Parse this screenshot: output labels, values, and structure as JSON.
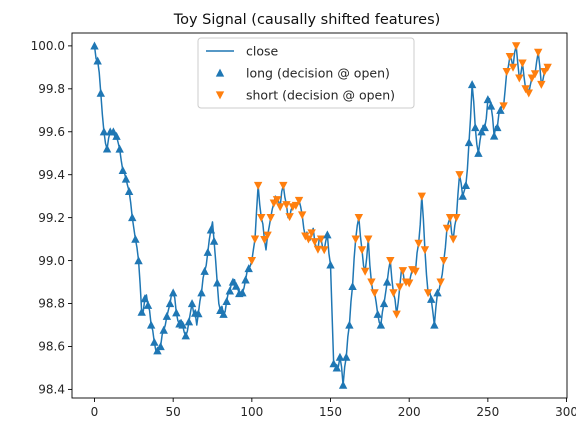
{
  "chart_data": {
    "type": "line",
    "title": "Toy Signal (causally shifted features)",
    "xlabel": "",
    "ylabel": "",
    "xlim": [
      -14.3,
      300.3
    ],
    "ylim": [
      98.36,
      100.06
    ],
    "x_ticks": [
      0,
      50,
      100,
      150,
      200,
      250,
      300
    ],
    "y_ticks": [
      98.4,
      98.6,
      98.8,
      99.0,
      99.2,
      99.4,
      99.6,
      99.8,
      100.0
    ],
    "y_tick_labels": [
      "98.4",
      "98.6",
      "98.8",
      "99.0",
      "99.2",
      "99.4",
      "99.6",
      "99.8",
      "100.0"
    ],
    "grid": false,
    "legend_position": "top-center",
    "series": [
      {
        "name": "close",
        "kind": "line",
        "color": "#1f77b4",
        "keypoints": [
          [
            0,
            100.0
          ],
          [
            2,
            99.93
          ],
          [
            4,
            99.78
          ],
          [
            6,
            99.6
          ],
          [
            8,
            99.52
          ],
          [
            10,
            99.6
          ],
          [
            12,
            99.6
          ],
          [
            15,
            99.55
          ],
          [
            18,
            99.42
          ],
          [
            20,
            99.38
          ],
          [
            23,
            99.27
          ],
          [
            26,
            99.1
          ],
          [
            28,
            99.0
          ],
          [
            30,
            98.76
          ],
          [
            33,
            98.84
          ],
          [
            36,
            98.7
          ],
          [
            38,
            98.62
          ],
          [
            40,
            98.58
          ],
          [
            42,
            98.6
          ],
          [
            45,
            98.7
          ],
          [
            48,
            98.8
          ],
          [
            50,
            98.85
          ],
          [
            53,
            98.72
          ],
          [
            56,
            98.7
          ],
          [
            58,
            98.65
          ],
          [
            62,
            98.8
          ],
          [
            65,
            98.7
          ],
          [
            68,
            98.85
          ],
          [
            70,
            98.95
          ],
          [
            73,
            99.1
          ],
          [
            75,
            99.18
          ],
          [
            77,
            99.0
          ],
          [
            79,
            98.8
          ],
          [
            82,
            98.75
          ],
          [
            85,
            98.85
          ],
          [
            88,
            98.9
          ],
          [
            91,
            98.87
          ],
          [
            94,
            98.85
          ],
          [
            97,
            98.95
          ],
          [
            100,
            99.0
          ],
          [
            102,
            99.1
          ],
          [
            104,
            99.35
          ],
          [
            106,
            99.2
          ],
          [
            109,
            99.05
          ],
          [
            112,
            99.2
          ],
          [
            115,
            99.3
          ],
          [
            118,
            99.25
          ],
          [
            120,
            99.35
          ],
          [
            123,
            99.2
          ],
          [
            126,
            99.25
          ],
          [
            130,
            99.28
          ],
          [
            133,
            99.15
          ],
          [
            136,
            99.1
          ],
          [
            139,
            99.15
          ],
          [
            141,
            99.06
          ],
          [
            144,
            99.1
          ],
          [
            146,
            99.05
          ],
          [
            148,
            99.12
          ],
          [
            150,
            98.98
          ],
          [
            152,
            98.52
          ],
          [
            154,
            98.5
          ],
          [
            156,
            98.55
          ],
          [
            158,
            98.42
          ],
          [
            160,
            98.55
          ],
          [
            162,
            98.7
          ],
          [
            164,
            98.88
          ],
          [
            166,
            99.1
          ],
          [
            168,
            99.2
          ],
          [
            170,
            99.05
          ],
          [
            172,
            98.95
          ],
          [
            174,
            99.1
          ],
          [
            176,
            98.9
          ],
          [
            178,
            98.85
          ],
          [
            180,
            98.75
          ],
          [
            182,
            98.7
          ],
          [
            184,
            98.8
          ],
          [
            186,
            98.9
          ],
          [
            188,
            99.0
          ],
          [
            190,
            98.85
          ],
          [
            192,
            98.75
          ],
          [
            195,
            98.95
          ],
          [
            198,
            98.9
          ],
          [
            201,
            98.93
          ],
          [
            204,
            98.95
          ],
          [
            206,
            99.08
          ],
          [
            208,
            99.3
          ],
          [
            210,
            99.05
          ],
          [
            212,
            98.85
          ],
          [
            214,
            98.82
          ],
          [
            216,
            98.7
          ],
          [
            218,
            98.85
          ],
          [
            220,
            98.9
          ],
          [
            222,
            99.0
          ],
          [
            224,
            99.15
          ],
          [
            226,
            99.2
          ],
          [
            228,
            99.1
          ],
          [
            230,
            99.2
          ],
          [
            232,
            99.4
          ],
          [
            234,
            99.3
          ],
          [
            236,
            99.35
          ],
          [
            238,
            99.55
          ],
          [
            240,
            99.82
          ],
          [
            242,
            99.62
          ],
          [
            244,
            99.5
          ],
          [
            246,
            99.6
          ],
          [
            248,
            99.62
          ],
          [
            250,
            99.75
          ],
          [
            252,
            99.72
          ],
          [
            254,
            99.58
          ],
          [
            256,
            99.62
          ],
          [
            258,
            99.7
          ],
          [
            260,
            99.72
          ],
          [
            262,
            99.88
          ],
          [
            264,
            99.95
          ],
          [
            266,
            99.9
          ],
          [
            268,
            100.0
          ],
          [
            270,
            99.85
          ],
          [
            272,
            99.92
          ],
          [
            274,
            99.8
          ],
          [
            276,
            99.78
          ],
          [
            278,
            99.85
          ],
          [
            280,
            99.87
          ],
          [
            282,
            99.97
          ],
          [
            284,
            99.82
          ],
          [
            286,
            99.88
          ],
          [
            288,
            99.9
          ]
        ]
      },
      {
        "name": "long (decision @ open)",
        "kind": "markers",
        "marker": "triangle-up",
        "color": "#1f77b4"
      },
      {
        "name": "short (decision @ open)",
        "kind": "markers",
        "marker": "triangle-down",
        "color": "#ff7f0e"
      }
    ],
    "regime_segments": [
      {
        "from": 0,
        "to": 78,
        "signal": "long"
      },
      {
        "from": 79,
        "to": 99,
        "signal": "long"
      },
      {
        "from": 100,
        "to": 146,
        "signal": "short"
      },
      {
        "from": 147,
        "to": 164,
        "signal": "long"
      },
      {
        "from": 165,
        "to": 178,
        "signal": "short"
      },
      {
        "from": 179,
        "to": 186,
        "signal": "long"
      },
      {
        "from": 187,
        "to": 212,
        "signal": "short"
      },
      {
        "from": 213,
        "to": 218,
        "signal": "long"
      },
      {
        "from": 219,
        "to": 232,
        "signal": "short"
      },
      {
        "from": 233,
        "to": 258,
        "signal": "long"
      },
      {
        "from": 259,
        "to": 288,
        "signal": "short"
      }
    ]
  }
}
